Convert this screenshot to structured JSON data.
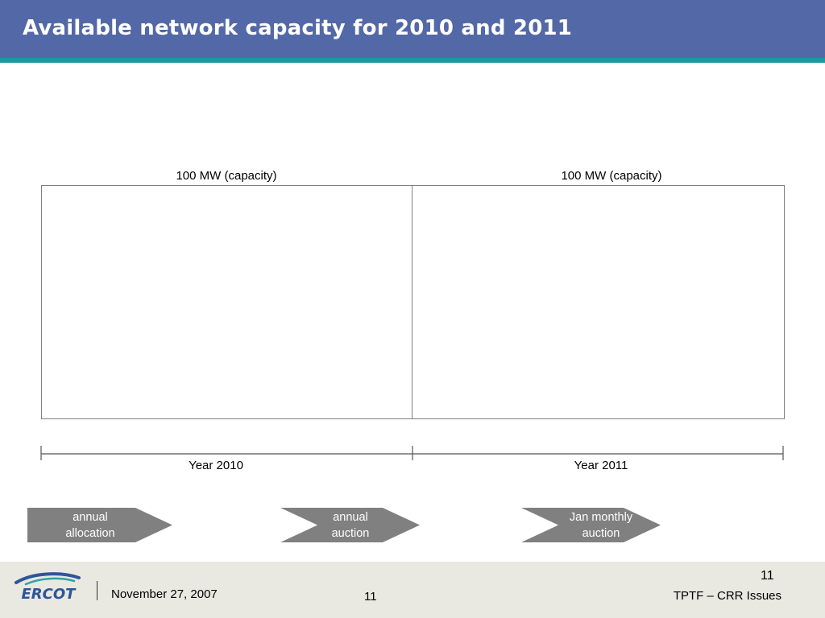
{
  "header": {
    "title": "Available network capacity for 2010 and 2011"
  },
  "capacity": {
    "left_label": "100 MW (capacity)",
    "right_label": "100 MW (capacity)"
  },
  "timeline": {
    "year_left": "Year 2010",
    "year_right": "Year 2011"
  },
  "steps": [
    {
      "label": "annual\nallocation"
    },
    {
      "label": "annual\nauction"
    },
    {
      "label": "Jan monthly\nauction"
    }
  ],
  "footer": {
    "logo_text": "ERCOT",
    "date": "November 27, 2007",
    "page_center": "11",
    "page_number": "11",
    "right_text": "TPTF – CRR Issues"
  },
  "colors": {
    "header_bg": "#5368a6",
    "header_stripe": "#1a9a9e",
    "arrow_fill": "#808080",
    "footer_bg": "#e9e8e1",
    "logo_blue": "#2e5597",
    "logo_teal": "#2aa3a8"
  }
}
